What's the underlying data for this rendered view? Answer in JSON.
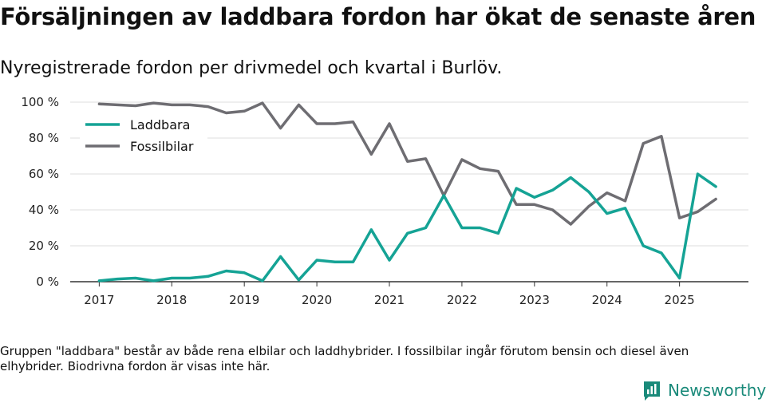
{
  "title": "Försäljningen av laddbara fordon har ökat de senaste åren",
  "subtitle": "Nyregistrerade fordon per drivmedel och kvartal i Burlöv.",
  "note": "Gruppen \"laddbara\" består av både rena elbilar och laddhybrider. I fossilbilar ingår förutom bensin och diesel även elhybrider. Biodrivna fordon är visas inte här.",
  "logo": {
    "text": "Newsworthy",
    "icon": "bar-chart-logo-icon"
  },
  "colors": {
    "laddbara": "#15a395",
    "fossilbilar": "#6e6d72",
    "grid": "#dddddd",
    "axis": "#333333"
  },
  "chart_data": {
    "type": "line",
    "title": "",
    "xlabel": "",
    "ylabel": "",
    "ylim": [
      0,
      100
    ],
    "yticks": [
      0,
      20,
      40,
      60,
      80,
      100
    ],
    "ytick_labels": [
      "0 %",
      "20 %",
      "40 %",
      "60 %",
      "80 %",
      "100 %"
    ],
    "xticks": [
      2017,
      2018,
      2019,
      2020,
      2021,
      2022,
      2023,
      2024,
      2025
    ],
    "xtick_labels": [
      "2017",
      "2018",
      "2019",
      "2020",
      "2021",
      "2022",
      "2023",
      "2024",
      "2025"
    ],
    "x": [
      2017.0,
      2017.25,
      2017.5,
      2017.75,
      2018.0,
      2018.25,
      2018.5,
      2018.75,
      2019.0,
      2019.25,
      2019.5,
      2019.75,
      2020.0,
      2020.25,
      2020.5,
      2020.75,
      2021.0,
      2021.25,
      2021.5,
      2021.75,
      2022.0,
      2022.25,
      2022.5,
      2022.75,
      2023.0,
      2023.25,
      2023.5,
      2023.75,
      2024.0,
      2024.25,
      2024.5,
      2024.75,
      2025.0,
      2025.25,
      2025.5
    ],
    "series": [
      {
        "name": "Laddbara",
        "values": [
          0.5,
          1.5,
          2,
          0.5,
          2,
          2,
          3,
          6,
          5,
          0.5,
          14,
          1,
          12,
          11,
          11,
          29,
          12,
          27,
          30,
          48,
          30,
          30,
          27,
          52,
          47,
          51,
          58,
          50,
          38,
          41,
          20,
          16,
          2,
          60,
          53
        ]
      },
      {
        "name": "Fossilbilar",
        "values": [
          99,
          98.5,
          98,
          99.5,
          98.5,
          98.5,
          97.5,
          94,
          95,
          99.5,
          85.5,
          98.5,
          88,
          88,
          89,
          71,
          88,
          67,
          68.5,
          48,
          68,
          63,
          61.5,
          43,
          43,
          40,
          32,
          42,
          49.5,
          45,
          77,
          81,
          35.5,
          39,
          46
        ]
      }
    ],
    "legend": "top-left"
  }
}
